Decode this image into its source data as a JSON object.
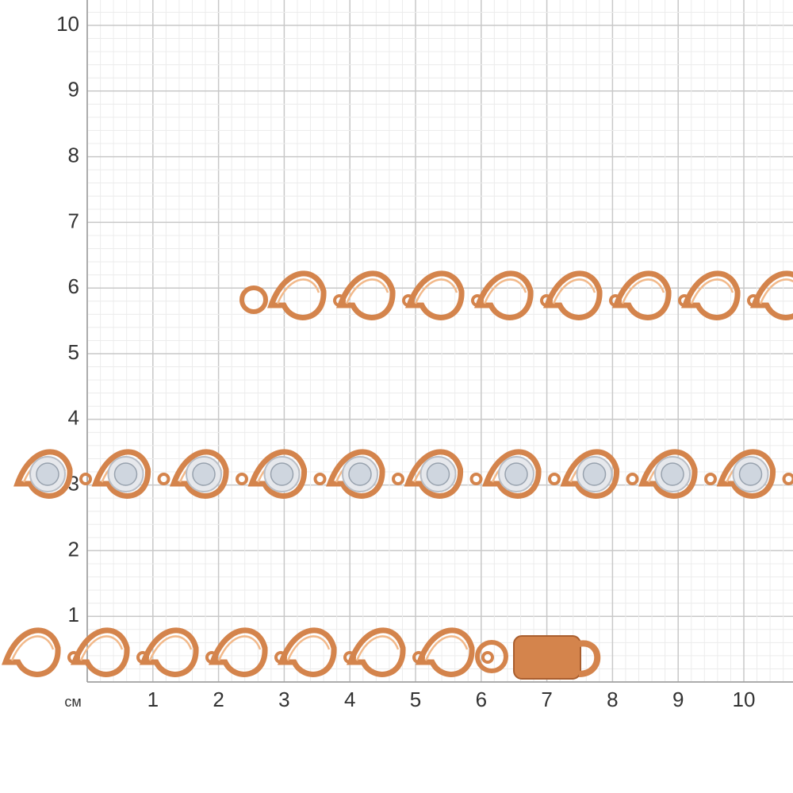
{
  "ruler": {
    "unit": "см",
    "x_labels": [
      "1",
      "2",
      "3",
      "4",
      "5",
      "6",
      "7",
      "8",
      "9",
      "10"
    ],
    "y_labels": [
      "1",
      "2",
      "3",
      "4",
      "5",
      "6",
      "7",
      "8",
      "9",
      "10"
    ]
  }
}
